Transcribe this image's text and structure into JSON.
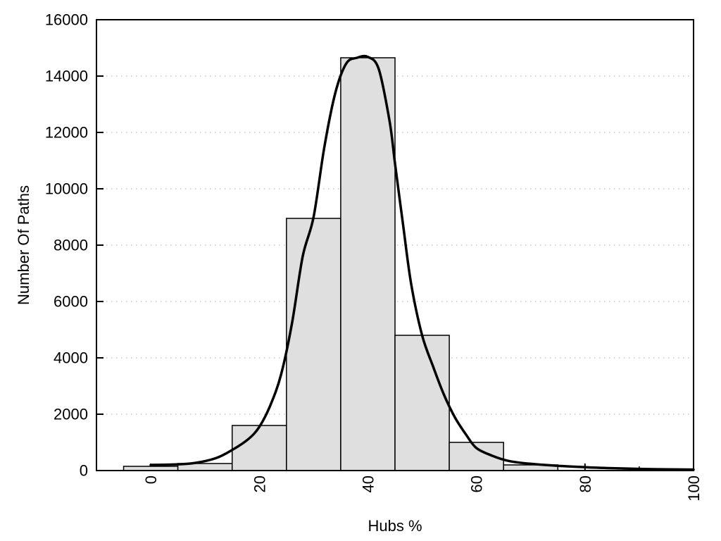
{
  "chart_data": {
    "type": "bar",
    "subtype": "histogram-with-density-curve",
    "title": "",
    "xlabel": "Hubs %",
    "ylabel": "Number Of Paths",
    "xlim": [
      -10,
      100
    ],
    "ylim": [
      0,
      16000
    ],
    "x_major_ticks": [
      0,
      20,
      40,
      60,
      80,
      100
    ],
    "x_minor_ticks": [
      10,
      30,
      50,
      70,
      90
    ],
    "y_major_ticks": [
      0,
      2000,
      4000,
      6000,
      8000,
      10000,
      12000,
      14000,
      16000
    ],
    "grid": {
      "horizontal_dotted": true,
      "color": "#c9c9c9"
    },
    "legend": null,
    "background": "#ffffff",
    "bars": {
      "bin_edges": [
        -5,
        5,
        15,
        25,
        35,
        45,
        55,
        65,
        75
      ],
      "counts": [
        150,
        250,
        1600,
        8950,
        14650,
        4800,
        1000,
        200
      ],
      "fill": "#dfdfdf",
      "stroke": "#000000"
    },
    "density_curve": {
      "color": "#000000",
      "stroke_width": 3.5,
      "points": [
        [
          0,
          200
        ],
        [
          4,
          215
        ],
        [
          8,
          265
        ],
        [
          12,
          440
        ],
        [
          15,
          730
        ],
        [
          18,
          1120
        ],
        [
          20,
          1550
        ],
        [
          22,
          2300
        ],
        [
          24,
          3400
        ],
        [
          26,
          5200
        ],
        [
          28,
          7600
        ],
        [
          30,
          9000
        ],
        [
          32,
          11500
        ],
        [
          34,
          13400
        ],
        [
          36,
          14440
        ],
        [
          38,
          14650
        ],
        [
          40,
          14680
        ],
        [
          42,
          14250
        ],
        [
          44,
          12400
        ],
        [
          45,
          10900
        ],
        [
          46.5,
          8700
        ],
        [
          48,
          6600
        ],
        [
          50,
          4800
        ],
        [
          52,
          3700
        ],
        [
          54,
          2700
        ],
        [
          56,
          1900
        ],
        [
          58,
          1300
        ],
        [
          60,
          800
        ],
        [
          63,
          520
        ],
        [
          66,
          340
        ],
        [
          70,
          240
        ],
        [
          75,
          170
        ],
        [
          80,
          120
        ],
        [
          85,
          85
        ],
        [
          90,
          60
        ],
        [
          95,
          45
        ],
        [
          100,
          35
        ]
      ]
    }
  }
}
